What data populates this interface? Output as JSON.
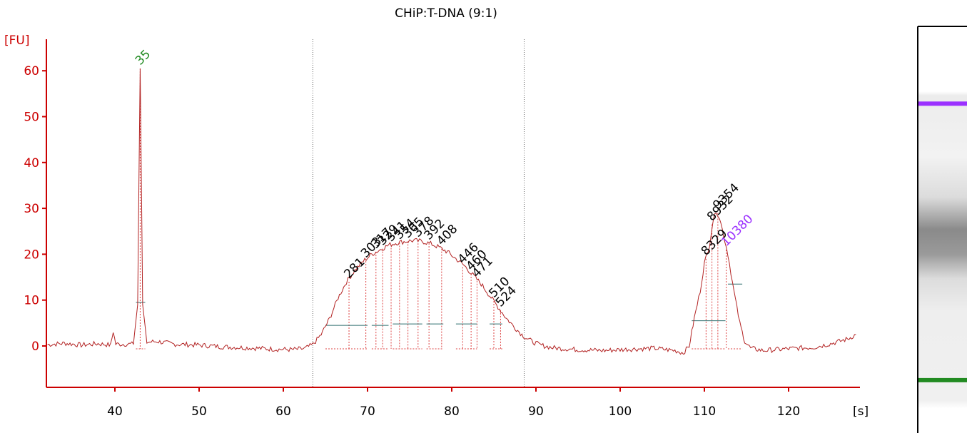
{
  "chart_data": {
    "type": "line",
    "title": "CHiP:T-DNA (9:1)",
    "xlabel": "[s]",
    "ylabel": "[FU]",
    "xlim": [
      32,
      128
    ],
    "ylim": [
      -8,
      66
    ],
    "x_ticks": [
      40,
      50,
      60,
      70,
      80,
      90,
      100,
      110,
      120
    ],
    "y_ticks": [
      0,
      10,
      20,
      30,
      40,
      50,
      60
    ],
    "grid": false,
    "colors": {
      "trace": "#b22222",
      "axis": "#cc0000",
      "marker_label": "#228b22",
      "upper_marker_label": "#9b30ff",
      "region_line": "#666666",
      "baseline": "#2f6f6f"
    },
    "region_bounds_s": [
      63.5,
      88.6
    ],
    "series": [
      {
        "values": [
          [
            32,
            0.3
          ],
          [
            34,
            0.6
          ],
          [
            36,
            0.2
          ],
          [
            38,
            0.5
          ],
          [
            39.5,
            0.2
          ],
          [
            39.8,
            3.2
          ],
          [
            40.1,
            0.4
          ],
          [
            42.2,
            0.4
          ],
          [
            42.7,
            9.0
          ],
          [
            43.0,
            60.5
          ],
          [
            43.3,
            9.0
          ],
          [
            43.8,
            0.8
          ],
          [
            45,
            1.0
          ],
          [
            47,
            0.4
          ],
          [
            50,
            0.2
          ],
          [
            53,
            -0.2
          ],
          [
            56,
            -0.4
          ],
          [
            59,
            -0.7
          ],
          [
            61,
            -0.8
          ],
          [
            62.5,
            -0.6
          ],
          [
            63.5,
            0.3
          ],
          [
            64.5,
            2.5
          ],
          [
            65.5,
            6.0
          ],
          [
            66.5,
            10.5
          ],
          [
            67.5,
            14.0
          ],
          [
            68.5,
            16.5
          ],
          [
            69.5,
            18.5
          ],
          [
            70.5,
            20.0
          ],
          [
            71.5,
            21.0
          ],
          [
            72.5,
            22.0
          ],
          [
            73.5,
            22.5
          ],
          [
            74.5,
            22.8
          ],
          [
            75.5,
            23.0
          ],
          [
            76.5,
            22.8
          ],
          [
            77.5,
            22.3
          ],
          [
            78.5,
            21.5
          ],
          [
            79.5,
            20.5
          ],
          [
            80.5,
            19.0
          ],
          [
            81.5,
            17.5
          ],
          [
            82.5,
            15.5
          ],
          [
            83.5,
            13.5
          ],
          [
            84.5,
            11.0
          ],
          [
            85.5,
            8.5
          ],
          [
            86.5,
            6.0
          ],
          [
            87.5,
            4.0
          ],
          [
            88.5,
            2.2
          ],
          [
            89.5,
            1.0
          ],
          [
            90.5,
            0.2
          ],
          [
            92,
            -0.4
          ],
          [
            95,
            -0.8
          ],
          [
            98,
            -1.0
          ],
          [
            101,
            -0.7
          ],
          [
            104,
            -0.5
          ],
          [
            106.5,
            -1.0
          ],
          [
            107.5,
            -1.5
          ],
          [
            108.2,
            0.0
          ],
          [
            108.8,
            6.0
          ],
          [
            109.5,
            12.0
          ],
          [
            110.0,
            18.0
          ],
          [
            110.6,
            22.0
          ],
          [
            111.0,
            27.0
          ],
          [
            111.4,
            29.5
          ],
          [
            111.8,
            28.0
          ],
          [
            112.3,
            24.0
          ],
          [
            112.8,
            20.0
          ],
          [
            113.5,
            12.0
          ],
          [
            114.2,
            5.0
          ],
          [
            114.8,
            1.0
          ],
          [
            115.5,
            -0.5
          ],
          [
            117,
            -1.0
          ],
          [
            120,
            -0.6
          ],
          [
            123,
            -0.3
          ],
          [
            125,
            0.5
          ],
          [
            127,
            1.5
          ],
          [
            128,
            2.5
          ]
        ]
      }
    ],
    "peaks": [
      {
        "label": "35",
        "x": 43.0,
        "y": 60.5,
        "kind": "lower_marker"
      },
      {
        "label": "281",
        "x": 67.8,
        "y": 14.0,
        "kind": "peak"
      },
      {
        "label": "303",
        "x": 69.8,
        "y": 18.5,
        "kind": "peak"
      },
      {
        "label": "317",
        "x": 71.0,
        "y": 20.5,
        "kind": "peak"
      },
      {
        "label": "329",
        "x": 71.8,
        "y": 21.2,
        "kind": "peak"
      },
      {
        "label": "341",
        "x": 72.8,
        "y": 22.0,
        "kind": "peak"
      },
      {
        "label": "354",
        "x": 73.8,
        "y": 22.5,
        "kind": "peak"
      },
      {
        "label": "365",
        "x": 74.8,
        "y": 22.8,
        "kind": "peak"
      },
      {
        "label": "378",
        "x": 76.0,
        "y": 23.0,
        "kind": "peak"
      },
      {
        "label": "392",
        "x": 77.3,
        "y": 22.4,
        "kind": "peak"
      },
      {
        "label": "408",
        "x": 78.8,
        "y": 21.2,
        "kind": "peak"
      },
      {
        "label": "446",
        "x": 81.3,
        "y": 17.2,
        "kind": "peak"
      },
      {
        "label": "460",
        "x": 82.3,
        "y": 15.7,
        "kind": "peak"
      },
      {
        "label": "471",
        "x": 83.0,
        "y": 14.2,
        "kind": "peak"
      },
      {
        "label": "510",
        "x": 85.0,
        "y": 9.8,
        "kind": "peak"
      },
      {
        "label": "524",
        "x": 85.8,
        "y": 7.8,
        "kind": "peak"
      },
      {
        "label": "8329",
        "x": 110.2,
        "y": 19.0,
        "kind": "peak"
      },
      {
        "label": "8932",
        "x": 110.9,
        "y": 26.5,
        "kind": "peak"
      },
      {
        "label": "9354",
        "x": 111.6,
        "y": 29.0,
        "kind": "peak"
      },
      {
        "label": "10380",
        "x": 112.6,
        "y": 21.0,
        "kind": "upper_marker"
      }
    ],
    "baselines": [
      {
        "x1": 42.5,
        "x2": 43.6,
        "y": 9.5
      },
      {
        "x1": 65.0,
        "x2": 70.0,
        "y": 4.5
      },
      {
        "x1": 70.5,
        "x2": 72.5,
        "y": 4.5
      },
      {
        "x1": 73.0,
        "x2": 76.5,
        "y": 4.8
      },
      {
        "x1": 77.0,
        "x2": 79.0,
        "y": 4.8
      },
      {
        "x1": 80.5,
        "x2": 83.0,
        "y": 4.8
      },
      {
        "x1": 84.5,
        "x2": 86.0,
        "y": 4.8
      },
      {
        "x1": 108.5,
        "x2": 112.5,
        "y": 5.5
      },
      {
        "x1": 112.8,
        "x2": 114.5,
        "y": 13.5
      }
    ],
    "gel_lane": {
      "bands": [
        {
          "name": "upper-marker",
          "color": "#9b30ff",
          "position": 0.19
        },
        {
          "name": "lower-marker",
          "color": "#228b22",
          "position": 0.87
        }
      ]
    }
  }
}
